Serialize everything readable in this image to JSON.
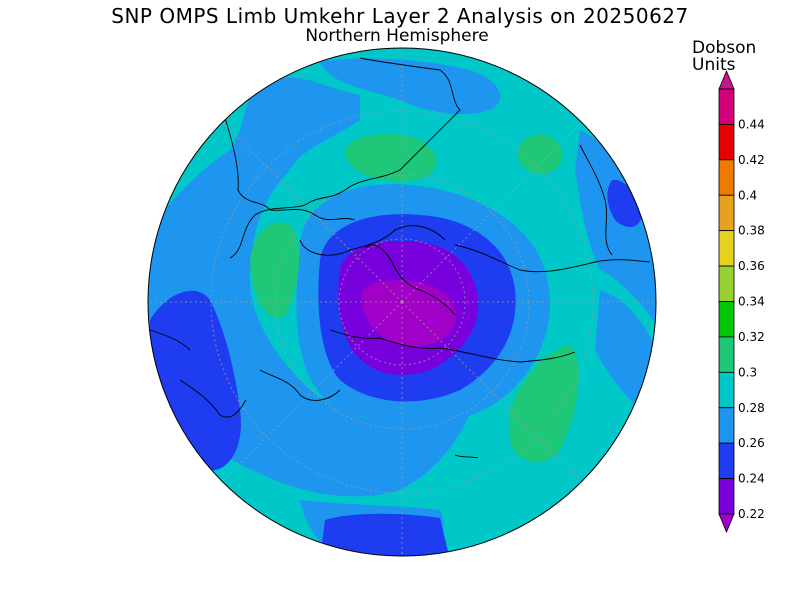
{
  "title": "SNP OMPS Limb Umkehr Layer 2 Analysis on 20250627",
  "subtitle": "Northern Hemisphere",
  "legend": {
    "title_line1": "Dobson",
    "title_line2": "Units",
    "levels": [
      {
        "value": "0.44",
        "color": "#d4007a"
      },
      {
        "value": "0.42",
        "color": "#e60000"
      },
      {
        "value": "0.4",
        "color": "#f07a00"
      },
      {
        "value": "0.38",
        "color": "#e8a020"
      },
      {
        "value": "0.36",
        "color": "#e6d21e"
      },
      {
        "value": "0.34",
        "color": "#96d232"
      },
      {
        "value": "0.32",
        "color": "#00c800"
      },
      {
        "value": "0.3",
        "color": "#1ec878"
      },
      {
        "value": "0.28",
        "color": "#00c8c8"
      },
      {
        "value": "0.26",
        "color": "#1e96f0"
      },
      {
        "value": "0.24",
        "color": "#1e3cf0"
      },
      {
        "value": "0.22",
        "color": "#7800dc"
      }
    ],
    "below_min_color": "#a000c8",
    "above_max_color": "#c8148c"
  },
  "map": {
    "projection": "north polar stereographic",
    "hemisphere": "Northern",
    "background_level_color": "#00c8c8"
  }
}
